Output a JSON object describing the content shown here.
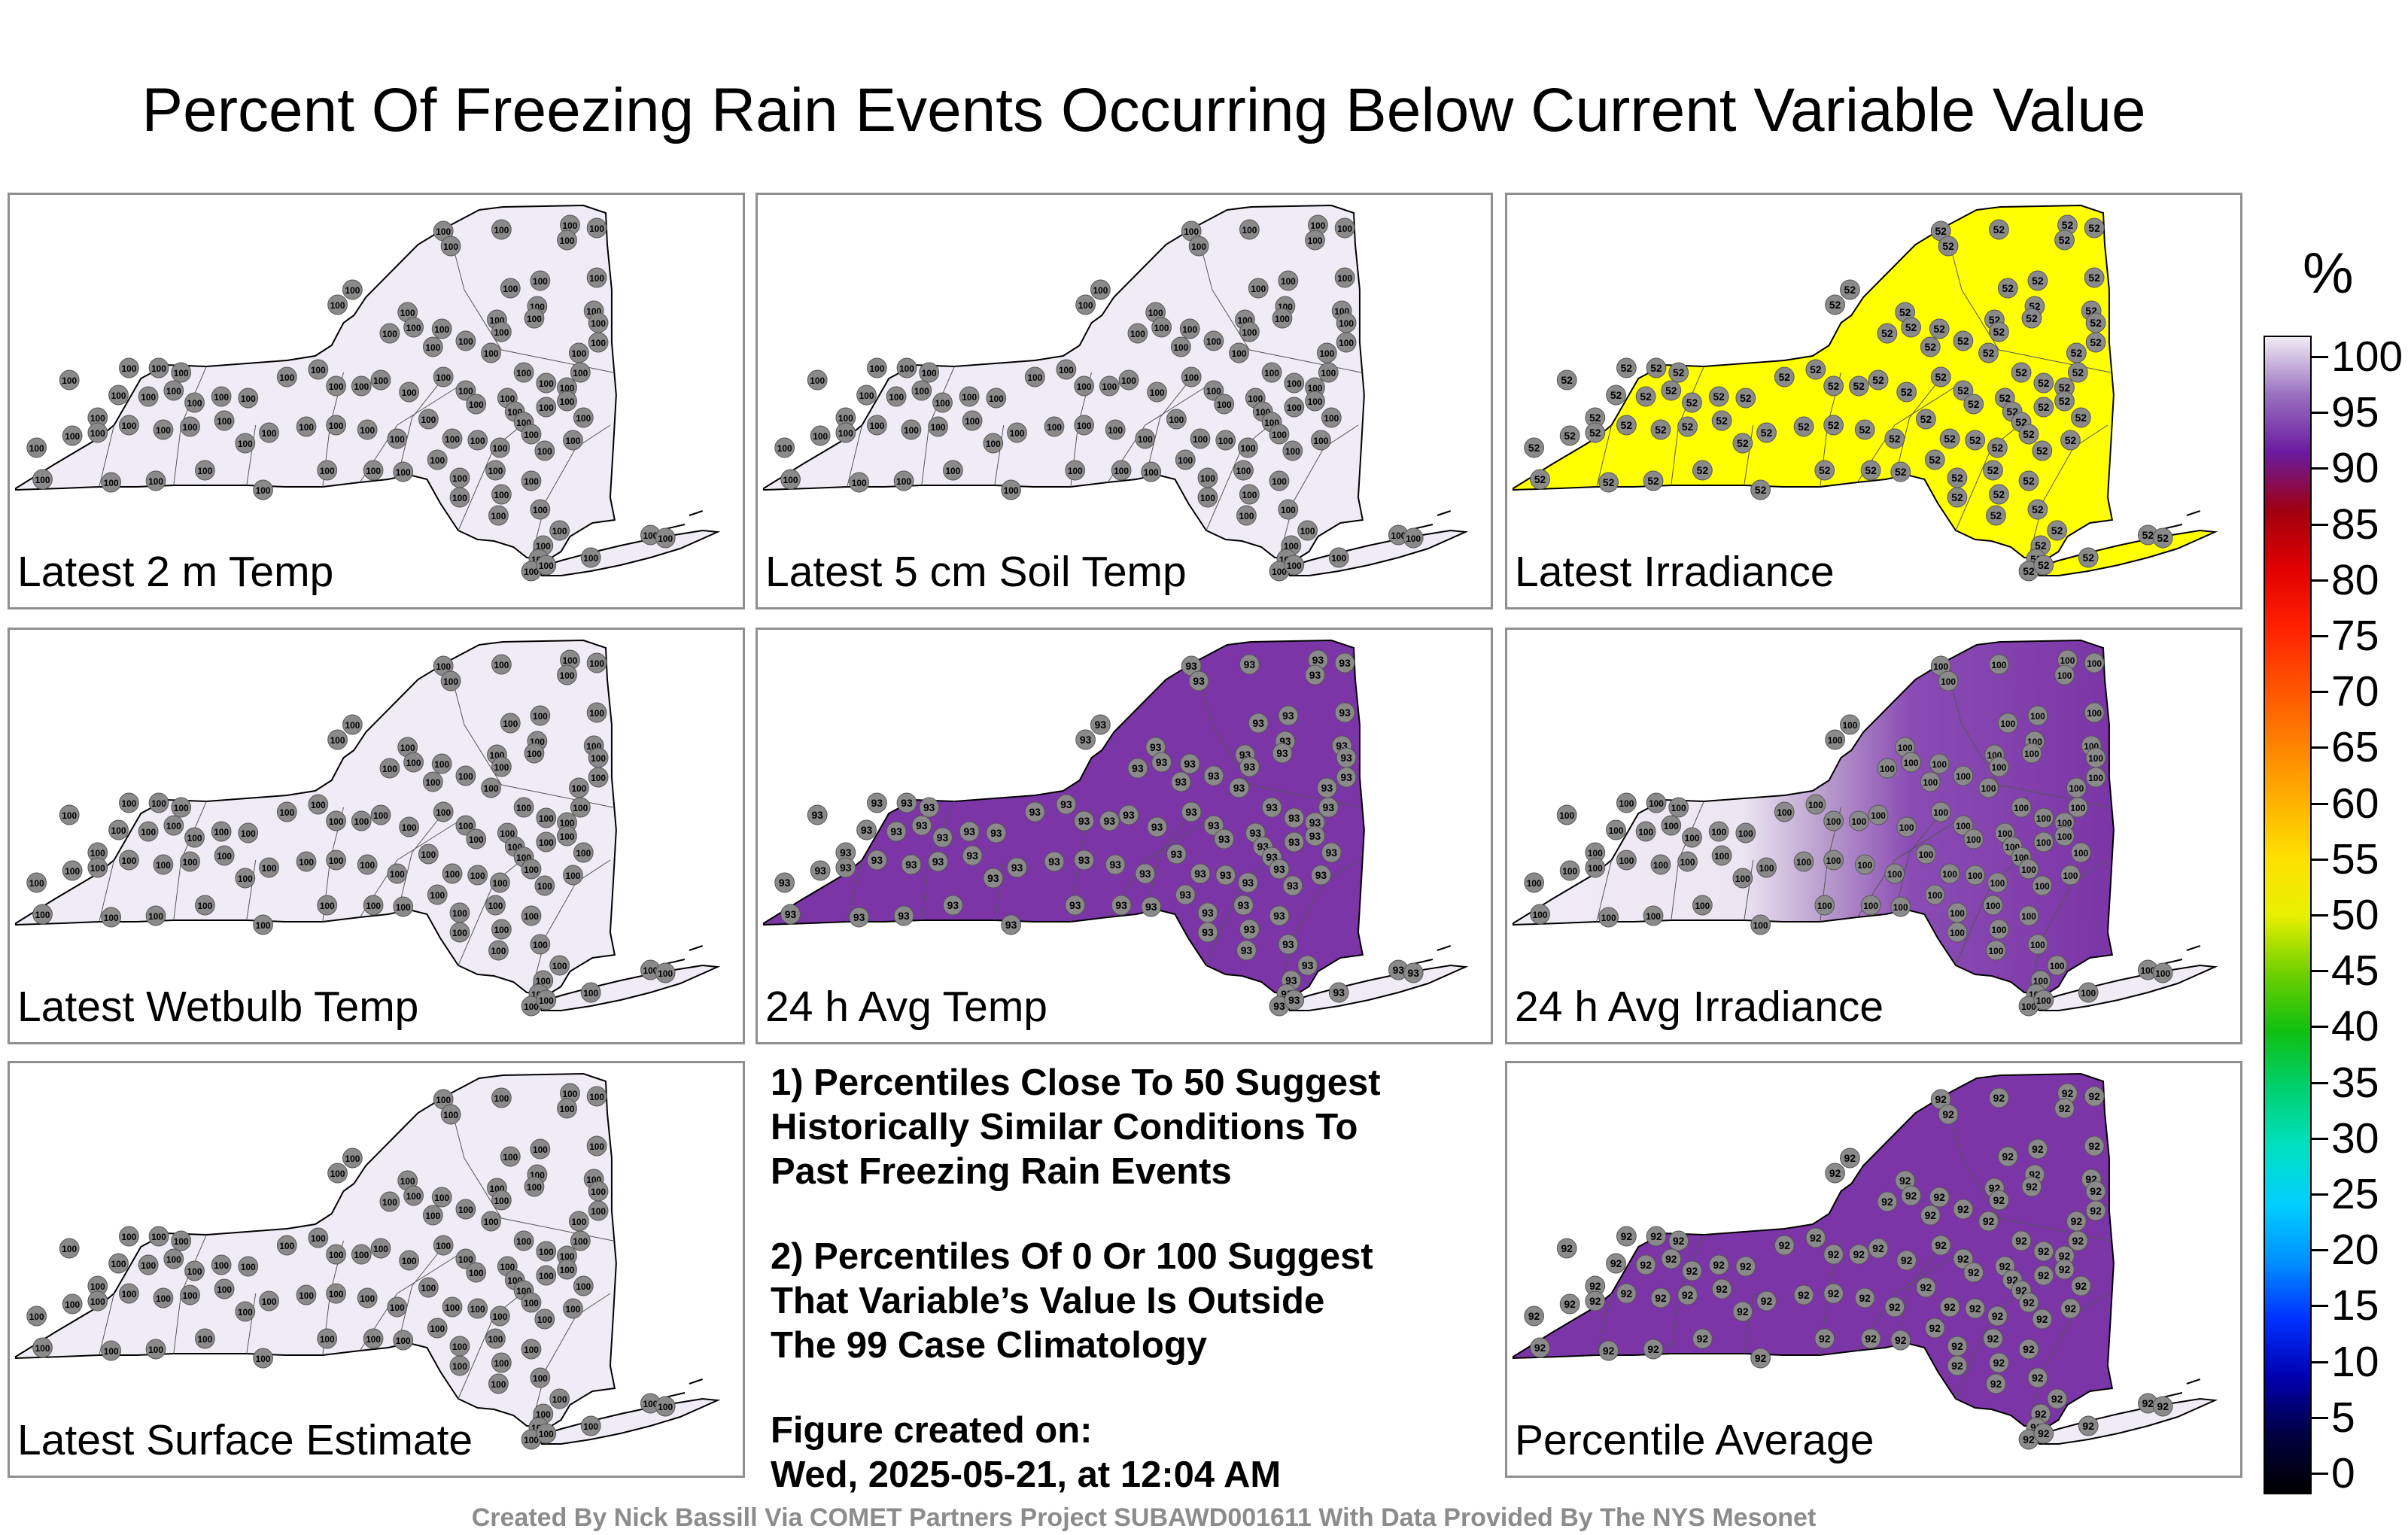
{
  "title": "Percent Of Freezing Rain Events Occurring Below Current Variable Value",
  "colors": {
    "white_low": "#f0ecf5",
    "yellow": "#ffff00",
    "purple": "#7b35a6",
    "dot": "#8a8a8a"
  },
  "panels": [
    {
      "label": "Latest 2 m Temp",
      "value": "100",
      "mode": "uniform",
      "fill": "#f0ecf5"
    },
    {
      "label": "Latest 5 cm Soil Temp",
      "value": "100",
      "mode": "uniform",
      "fill": "#f0ecf5"
    },
    {
      "label": "Latest Irradiance",
      "value": "52",
      "mode": "uniform",
      "fill": "#ffff00"
    },
    {
      "label": "Latest Wetbulb Temp",
      "value": "100",
      "mode": "uniform",
      "fill": "#f0ecf5"
    },
    {
      "label": "24 h Avg Temp",
      "value": "93",
      "mode": "purple",
      "fill": "#7b35a6"
    },
    {
      "label": "24 h Avg Irradiance",
      "value": "100",
      "mode": "mixed-east",
      "fill": "#7b35a6"
    },
    {
      "label": "Latest Surface Estimate",
      "value": "100",
      "mode": "uniform",
      "fill": "#f0ecf5"
    },
    {
      "label": "Percentile Average",
      "value": "92",
      "mode": "purple",
      "fill": "#7b35a6"
    }
  ],
  "notes": [
    "1) Percentiles Close To 50 Suggest Historically Similar Conditions To Past Freezing Rain Events",
    "2) Percentiles Of 0 Or 100 Suggest That Variable’s Value Is Outside The 99 Case Climatology",
    "Figure created on: Wed, 2025-05-21, at 12:04 AM"
  ],
  "notes_lines": [
    [
      "1) Percentiles Close To 50 Suggest",
      "Historically Similar Conditions To",
      "Past Freezing Rain Events"
    ],
    [
      "2) Percentiles Of 0 Or 100 Suggest",
      "That Variable’s Value Is Outside",
      "The 99 Case Climatology"
    ],
    [
      "Figure created on:",
      "Wed, 2025-05-21, at 12:04 AM"
    ]
  ],
  "credit": "Created By Nick Bassill Via COMET Partners Project SUBAWD001611 With Data Provided By The NYS Mesonet",
  "colorbar": {
    "unit": "%",
    "ticks": [
      "100",
      "95",
      "90",
      "85",
      "80",
      "75",
      "70",
      "65",
      "60",
      "55",
      "50",
      "45",
      "40",
      "35",
      "30",
      "25",
      "20",
      "15",
      "10",
      "5",
      "0"
    ],
    "range": [
      0,
      100
    ]
  }
}
